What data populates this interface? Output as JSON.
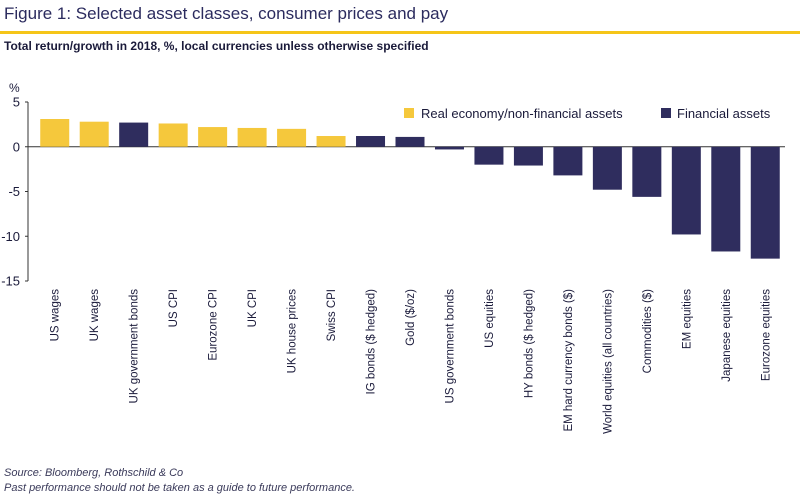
{
  "title": "Figure 1: Selected asset classes, consumer prices and pay",
  "subtitle": "Total return/growth in 2018, %, local currencies unless otherwise specified",
  "source": "Source: Bloomberg, Rothschild & Co",
  "disclaimer": "Past performance should not be taken as a guide to future performance.",
  "colors": {
    "real": "#f5c83c",
    "financial": "#2f2d5e",
    "accent_rule": "#f5c518"
  },
  "chart_data": {
    "type": "bar",
    "ylabel": "%",
    "ylim": [
      -15,
      5
    ],
    "yticks": [
      5,
      0,
      -5,
      -10,
      -15
    ],
    "grid": false,
    "legend_position": "top-right",
    "legend": [
      {
        "key": "real",
        "label": "Real economy/non-financial assets"
      },
      {
        "key": "financial",
        "label": "Financial assets"
      }
    ],
    "categories": [
      "US wages",
      "UK wages",
      "UK government bonds",
      "US CPI",
      "Eurozone CPI",
      "UK CPI",
      "UK house prices",
      "Swiss CPI",
      "IG bonds ($ hedged)",
      "Gold ($/oz)",
      "US government bonds",
      "US equities",
      "HY bonds ($ hedged)",
      "EM hard currency bonds ($)",
      "World equities (all countries)",
      "Commodities ($)",
      "EM equities",
      "Japanese equities",
      "Eurozone equities"
    ],
    "values": [
      3.1,
      2.8,
      2.7,
      2.6,
      2.2,
      2.1,
      2.0,
      1.2,
      1.2,
      1.1,
      -0.3,
      -2.0,
      -2.1,
      -3.2,
      -4.8,
      -5.6,
      -9.8,
      -11.7,
      -12.5
    ],
    "groups": [
      "real",
      "real",
      "financial",
      "real",
      "real",
      "real",
      "real",
      "real",
      "financial",
      "financial",
      "financial",
      "financial",
      "financial",
      "financial",
      "financial",
      "financial",
      "financial",
      "financial",
      "financial"
    ]
  }
}
